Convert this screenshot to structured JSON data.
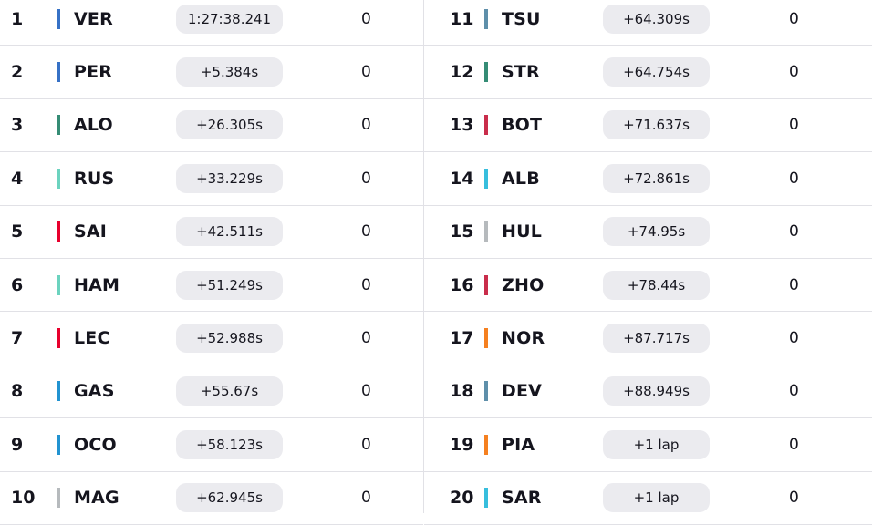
{
  "results": [
    {
      "pos": "1",
      "code": "VER",
      "time": "1:27:38.241",
      "pts": "0",
      "color": "#3671c6"
    },
    {
      "pos": "2",
      "code": "PER",
      "time": "+5.384s",
      "pts": "0",
      "color": "#3671c6"
    },
    {
      "pos": "3",
      "code": "ALO",
      "time": "+26.305s",
      "pts": "0",
      "color": "#358c75"
    },
    {
      "pos": "4",
      "code": "RUS",
      "time": "+33.229s",
      "pts": "0",
      "color": "#6cd3bf"
    },
    {
      "pos": "5",
      "code": "SAI",
      "time": "+42.511s",
      "pts": "0",
      "color": "#e8002d"
    },
    {
      "pos": "6",
      "code": "HAM",
      "time": "+51.249s",
      "pts": "0",
      "color": "#6cd3bf"
    },
    {
      "pos": "7",
      "code": "LEC",
      "time": "+52.988s",
      "pts": "0",
      "color": "#e8002d"
    },
    {
      "pos": "8",
      "code": "GAS",
      "time": "+55.67s",
      "pts": "0",
      "color": "#2293d1"
    },
    {
      "pos": "9",
      "code": "OCO",
      "time": "+58.123s",
      "pts": "0",
      "color": "#2293d1"
    },
    {
      "pos": "10",
      "code": "MAG",
      "time": "+62.945s",
      "pts": "0",
      "color": "#b6babd"
    },
    {
      "pos": "11",
      "code": "TSU",
      "time": "+64.309s",
      "pts": "0",
      "color": "#5e8faa"
    },
    {
      "pos": "12",
      "code": "STR",
      "time": "+64.754s",
      "pts": "0",
      "color": "#358c75"
    },
    {
      "pos": "13",
      "code": "BOT",
      "time": "+71.637s",
      "pts": "0",
      "color": "#c92d4b"
    },
    {
      "pos": "14",
      "code": "ALB",
      "time": "+72.861s",
      "pts": "0",
      "color": "#37bedd"
    },
    {
      "pos": "15",
      "code": "HUL",
      "time": "+74.95s",
      "pts": "0",
      "color": "#b6babd"
    },
    {
      "pos": "16",
      "code": "ZHO",
      "time": "+78.44s",
      "pts": "0",
      "color": "#c92d4b"
    },
    {
      "pos": "17",
      "code": "NOR",
      "time": "+87.717s",
      "pts": "0",
      "color": "#f58020"
    },
    {
      "pos": "18",
      "code": "DEV",
      "time": "+88.949s",
      "pts": "0",
      "color": "#5e8faa"
    },
    {
      "pos": "19",
      "code": "PIA",
      "time": "+1 lap",
      "pts": "0",
      "color": "#f58020"
    },
    {
      "pos": "20",
      "code": "SAR",
      "time": "+1 lap",
      "pts": "0",
      "color": "#37bedd"
    }
  ]
}
